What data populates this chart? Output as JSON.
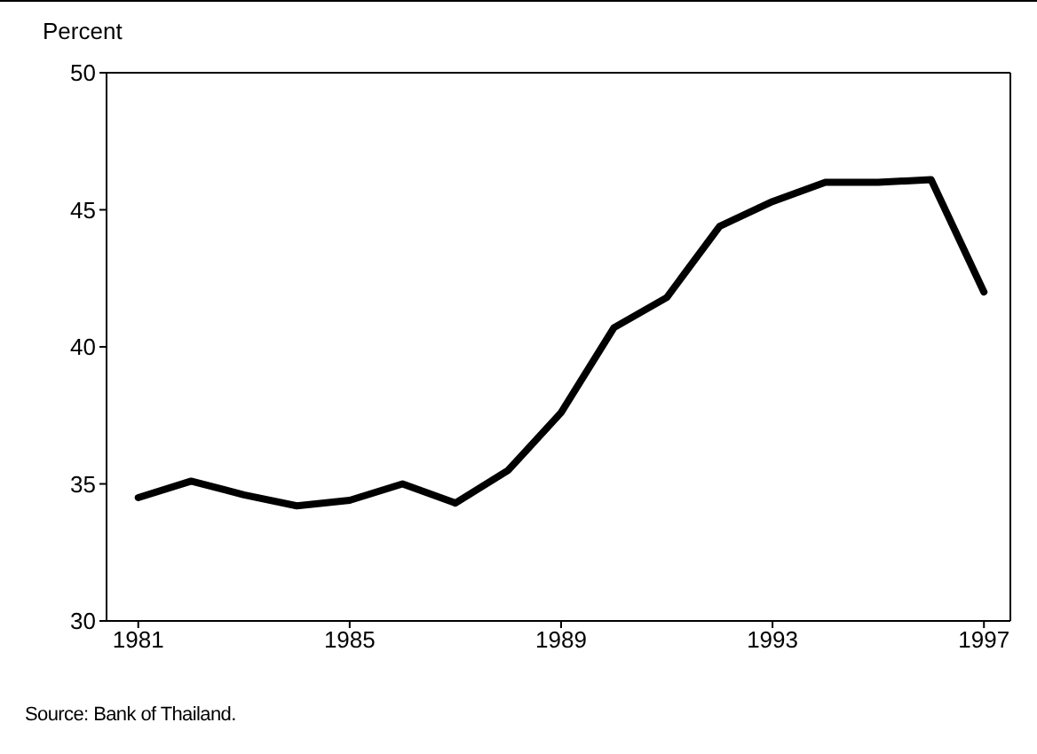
{
  "chart_data": {
    "type": "line",
    "ylabel": "Percent",
    "annotations": [
      "Source: Bank of Thailand."
    ],
    "x": [
      1981,
      1982,
      1983,
      1984,
      1985,
      1986,
      1987,
      1988,
      1989,
      1990,
      1991,
      1992,
      1993,
      1994,
      1995,
      1996,
      1997
    ],
    "series": [
      {
        "color": "#000000",
        "values": [
          34.5,
          35.1,
          34.6,
          34.2,
          34.4,
          35.0,
          34.3,
          35.5,
          37.6,
          40.7,
          41.8,
          44.4,
          45.3,
          46.0,
          46.0,
          46.1,
          42.0
        ]
      }
    ],
    "xlim": [
      1980.4,
      1997.5
    ],
    "xticks": [
      1981,
      1985,
      1989,
      1993,
      1997
    ],
    "ylim": [
      30,
      50
    ],
    "yticks": [
      30,
      35,
      40,
      45,
      50
    ],
    "grid": false,
    "legend": false,
    "marker": "none",
    "line_style": "solid"
  }
}
